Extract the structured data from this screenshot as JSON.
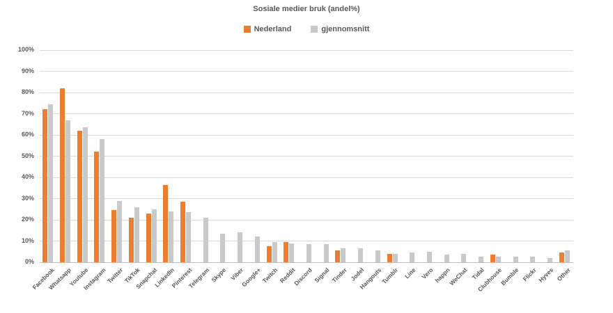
{
  "chart_data": {
    "type": "bar",
    "title": "Sosiale medier bruk (andel%)",
    "xlabel": "",
    "ylabel": "",
    "ylim": [
      0,
      100
    ],
    "ytick_step": 10,
    "ytick_labels": [
      "0%",
      "10%",
      "20%",
      "30%",
      "40%",
      "50%",
      "60%",
      "70%",
      "80%",
      "90%",
      "100%"
    ],
    "grid": true,
    "legend_position": "top",
    "x_label_rotation": -45,
    "categories": [
      "Facebook",
      "Whatsapp",
      "Youtube",
      "Instagram",
      "Twitter",
      "TikTok",
      "Snapchat",
      "LinkedIn",
      "Pinterest",
      "Telegram",
      "Skype",
      "Viber",
      "Google+",
      "Twitch",
      "Reddit",
      "Discord",
      "Signal",
      "Tinder",
      "Jodel",
      "Hangouts",
      "Tumblr",
      "Line",
      "Vero",
      "happn",
      "WeChat",
      "Tidal",
      "Clubhouse",
      "Bumble",
      "Flickr",
      "Hyves",
      "Other"
    ],
    "series": [
      {
        "name": "Nederland",
        "color": "#ED7D31",
        "values": [
          72,
          82,
          62,
          52,
          24.5,
          21,
          23,
          36.5,
          28.5,
          0,
          0,
          0,
          0,
          7.5,
          9.5,
          0,
          0,
          5.5,
          0,
          0,
          4,
          0,
          0,
          0,
          0,
          0,
          3.5,
          0,
          0,
          0,
          4.5
        ]
      },
      {
        "name": "gjennomsnitt",
        "color": "#C9C9C9",
        "values": [
          74.5,
          67,
          63.5,
          58,
          29,
          26,
          25,
          24,
          23.5,
          21,
          13.5,
          14,
          12,
          9.5,
          9,
          8.5,
          8.5,
          6.5,
          6.5,
          5.5,
          4,
          4.5,
          5,
          3.5,
          4,
          2.5,
          2.5,
          2.5,
          2.5,
          2,
          5.5
        ]
      }
    ]
  }
}
